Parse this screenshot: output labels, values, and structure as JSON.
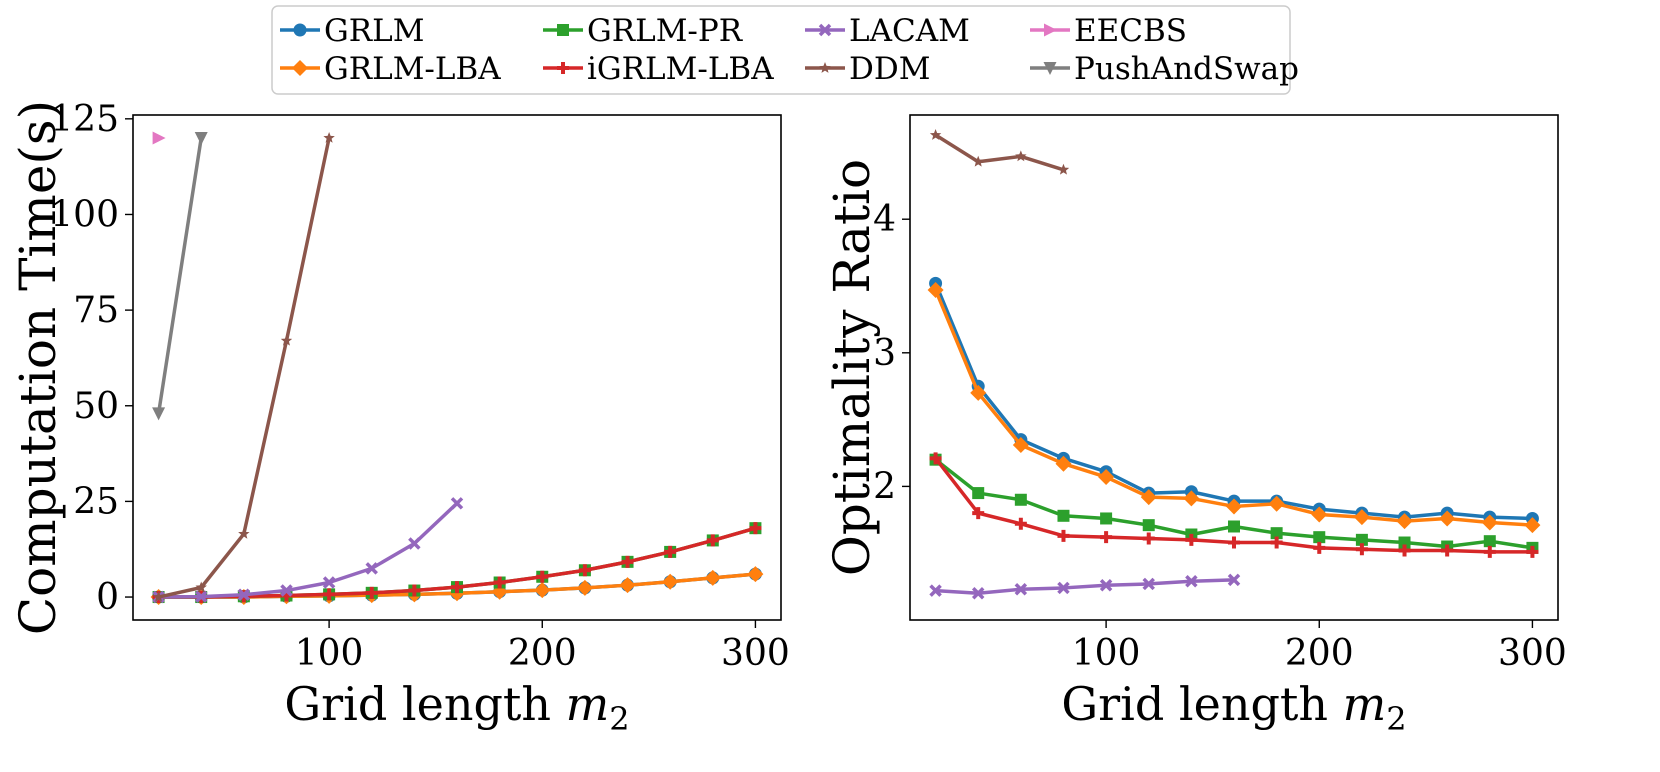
{
  "chart_data": [
    {
      "type": "line",
      "ylabel": "Computation Time(s)",
      "xlabel_text": "Grid length ",
      "xlabel_var": "m",
      "xlabel_sub": "2",
      "xlim": [
        8,
        312
      ],
      "ylim": [
        -6,
        126
      ],
      "xticks": [
        100,
        200,
        300
      ],
      "yticks": [
        0,
        25,
        50,
        75,
        100,
        125
      ],
      "series": [
        {
          "name": "GRLM",
          "x": [
            20,
            40,
            60,
            80,
            100,
            120,
            140,
            160,
            180,
            200,
            220,
            240,
            260,
            280,
            300
          ],
          "y": [
            0,
            0,
            0,
            0.2,
            0.3,
            0.5,
            0.7,
            1.0,
            1.4,
            1.8,
            2.4,
            3.1,
            4.0,
            5.0,
            6.0
          ]
        },
        {
          "name": "GRLM-LBA",
          "x": [
            20,
            40,
            60,
            80,
            100,
            120,
            140,
            160,
            180,
            200,
            220,
            240,
            260,
            280,
            300
          ],
          "y": [
            0,
            0,
            0,
            0.2,
            0.3,
            0.5,
            0.7,
            1.0,
            1.4,
            1.8,
            2.4,
            3.1,
            4.0,
            5.0,
            6.0
          ]
        },
        {
          "name": "GRLM-PR",
          "x": [
            20,
            40,
            60,
            80,
            100,
            120,
            140,
            160,
            180,
            200,
            220,
            240,
            260,
            280,
            300
          ],
          "y": [
            0,
            0,
            0.2,
            0.4,
            0.7,
            1.1,
            1.7,
            2.6,
            3.8,
            5.3,
            7.0,
            9.2,
            11.8,
            14.8,
            18.0
          ]
        },
        {
          "name": "iGRLM-LBA",
          "x": [
            20,
            40,
            60,
            80,
            100,
            120,
            140,
            160,
            180,
            200,
            220,
            240,
            260,
            280,
            300
          ],
          "y": [
            0,
            0,
            0.2,
            0.4,
            0.7,
            1.1,
            1.7,
            2.6,
            3.8,
            5.3,
            7.0,
            9.2,
            11.8,
            14.8,
            18.0
          ]
        },
        {
          "name": "LACAM",
          "x": [
            20,
            40,
            60,
            80,
            100,
            120,
            140,
            160
          ],
          "y": [
            0,
            0.1,
            0.6,
            1.7,
            3.8,
            7.5,
            14.0,
            24.5
          ]
        },
        {
          "name": "DDM",
          "x": [
            20,
            40,
            60,
            80,
            100
          ],
          "y": [
            0,
            2.5,
            16.5,
            67,
            120
          ]
        },
        {
          "name": "EECBS",
          "x": [
            20
          ],
          "y": [
            120
          ]
        },
        {
          "name": "PushAndSwap",
          "x": [
            20,
            40
          ],
          "y": [
            48,
            120
          ]
        }
      ]
    },
    {
      "type": "line",
      "ylabel": "Optimality Ratio",
      "xlabel_text": "Grid length ",
      "xlabel_var": "m",
      "xlabel_sub": "2",
      "xlim": [
        8,
        312
      ],
      "ylim": [
        1.0,
        4.78
      ],
      "xticks": [
        100,
        200,
        300
      ],
      "yticks": [
        2,
        3,
        4
      ],
      "series": [
        {
          "name": "GRLM",
          "x": [
            20,
            40,
            60,
            80,
            100,
            120,
            140,
            160,
            180,
            200,
            220,
            240,
            260,
            280,
            300
          ],
          "y": [
            3.52,
            2.75,
            2.35,
            2.21,
            2.11,
            1.95,
            1.96,
            1.89,
            1.89,
            1.83,
            1.8,
            1.77,
            1.8,
            1.77,
            1.76
          ]
        },
        {
          "name": "GRLM-LBA",
          "x": [
            20,
            40,
            60,
            80,
            100,
            120,
            140,
            160,
            180,
            200,
            220,
            240,
            260,
            280,
            300
          ],
          "y": [
            3.47,
            2.7,
            2.31,
            2.17,
            2.07,
            1.92,
            1.91,
            1.85,
            1.87,
            1.79,
            1.77,
            1.74,
            1.76,
            1.73,
            1.71
          ]
        },
        {
          "name": "GRLM-PR",
          "x": [
            20,
            40,
            60,
            80,
            100,
            120,
            140,
            160,
            180,
            200,
            220,
            240,
            260,
            280,
            300
          ],
          "y": [
            2.2,
            1.95,
            1.9,
            1.78,
            1.76,
            1.71,
            1.64,
            1.7,
            1.65,
            1.62,
            1.6,
            1.58,
            1.55,
            1.59,
            1.54
          ]
        },
        {
          "name": "iGRLM-LBA",
          "x": [
            20,
            40,
            60,
            80,
            100,
            120,
            140,
            160,
            180,
            200,
            220,
            240,
            260,
            280,
            300
          ],
          "y": [
            2.21,
            1.8,
            1.72,
            1.63,
            1.62,
            1.61,
            1.6,
            1.58,
            1.58,
            1.54,
            1.53,
            1.52,
            1.52,
            1.51,
            1.51
          ]
        },
        {
          "name": "LACAM",
          "x": [
            20,
            40,
            60,
            80,
            100,
            120,
            140,
            160
          ],
          "y": [
            1.22,
            1.2,
            1.23,
            1.24,
            1.26,
            1.27,
            1.29,
            1.3
          ]
        },
        {
          "name": "DDM",
          "x": [
            20,
            40,
            60,
            80
          ],
          "y": [
            4.63,
            4.43,
            4.47,
            4.37
          ]
        }
      ]
    }
  ],
  "legend": [
    {
      "name": "GRLM",
      "color": "#1f77b4",
      "marker": "circle"
    },
    {
      "name": "GRLM-PR",
      "color": "#2ca02c",
      "marker": "square"
    },
    {
      "name": "LACAM",
      "color": "#9467bd",
      "marker": "x"
    },
    {
      "name": "EECBS",
      "color": "#e377c2",
      "marker": "tri-right"
    },
    {
      "name": "GRLM-LBA",
      "color": "#ff7f0e",
      "marker": "diamond"
    },
    {
      "name": "iGRLM-LBA",
      "color": "#d62728",
      "marker": "plus"
    },
    {
      "name": "DDM",
      "color": "#8c564b",
      "marker": "star"
    },
    {
      "name": "PushAndSwap",
      "color": "#7f7f7f",
      "marker": "tri-down"
    }
  ]
}
